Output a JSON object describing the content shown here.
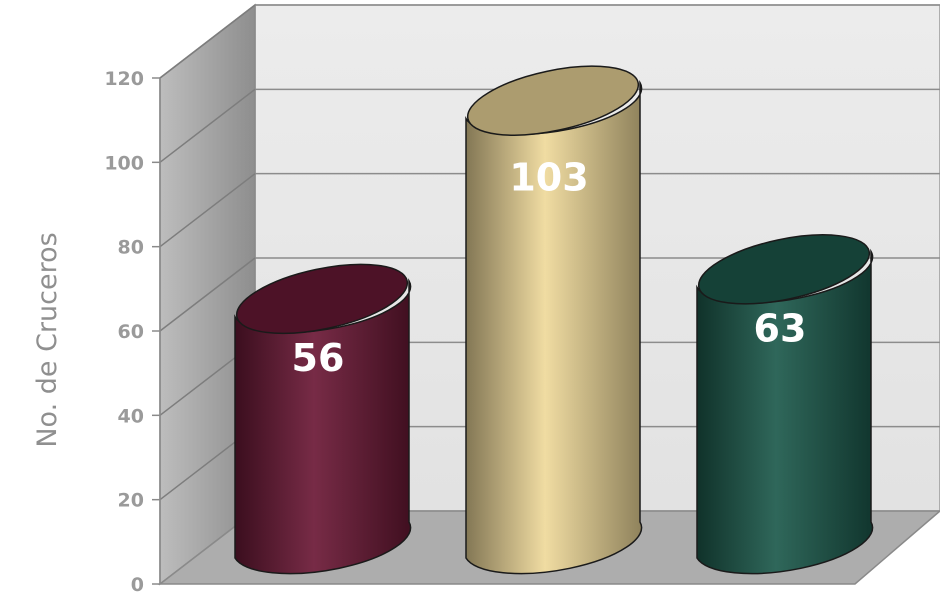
{
  "chart_data": {
    "type": "bar",
    "style": "3d-cylinder",
    "categories": [
      "",
      "",
      ""
    ],
    "values": [
      56,
      103,
      63
    ],
    "value_labels": [
      "56",
      "103",
      "63"
    ],
    "colors": [
      "#6b1936",
      "#efd99a",
      "#1d5a4c"
    ],
    "ylabel": "No. de Cruceros",
    "ylim": [
      0,
      120
    ],
    "yticks": [
      "0",
      "20",
      "40",
      "60",
      "80",
      "100",
      "120"
    ],
    "grid": true,
    "legend": "none"
  }
}
